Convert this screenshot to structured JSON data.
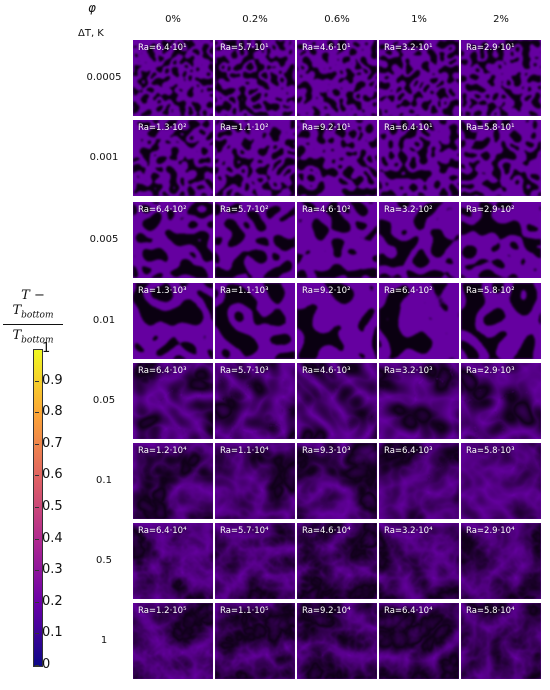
{
  "header": {
    "phi_label": "φ",
    "dT_label": "ΔT, K",
    "columns": [
      "0%",
      "0.2%",
      "0.6%",
      "1%",
      "2%"
    ]
  },
  "rows": [
    {
      "dT": "0.0005",
      "ra": [
        "Ra=6.4·10¹",
        "Ra=5.7·10¹",
        "Ra=4.6·10¹",
        "Ra=3.2·10¹",
        "Ra=2.9·10¹"
      ]
    },
    {
      "dT": "0.001",
      "ra": [
        "Ra=1.3·10²",
        "Ra=1.1·10²",
        "Ra=9.2·10¹",
        "Ra=6.4·10¹",
        "Ra=5.8·10¹"
      ]
    },
    {
      "dT": "0.005",
      "ra": [
        "Ra=6.4·10²",
        "Ra=5.7·10²",
        "Ra=4.6·10²",
        "Ra=3.2·10²",
        "Ra=2.9·10²"
      ]
    },
    {
      "dT": "0.01",
      "ra": [
        "Ra=1.3·10³",
        "Ra=1.1·10³",
        "Ra=9.2·10²",
        "Ra=6.4·10²",
        "Ra=5.8·10²"
      ]
    },
    {
      "dT": "0.05",
      "ra": [
        "Ra=6.4·10³",
        "Ra=5.7·10³",
        "Ra=4.6·10³",
        "Ra=3.2·10³",
        "Ra=2.9·10³"
      ]
    },
    {
      "dT": "0.1",
      "ra": [
        "Ra=1.2·10⁴",
        "Ra=1.1·10⁴",
        "Ra=9.3·10³",
        "Ra=6.4·10³",
        "Ra=5.8·10³"
      ]
    },
    {
      "dT": "0.5",
      "ra": [
        "Ra=6.4·10⁴",
        "Ra=5.7·10⁴",
        "Ra=4.6·10⁴",
        "Ra=3.2·10⁴",
        "Ra=2.9·10⁴"
      ]
    },
    {
      "dT": "1",
      "ra": [
        "Ra=1.2·10⁵",
        "Ra=1.1·10⁵",
        "Ra=9.2·10⁴",
        "Ra=6.4·10⁴",
        "Ra=5.8·10⁴"
      ]
    }
  ],
  "colorbar": {
    "numerator": "T − T",
    "numerator_sub": "bottom",
    "denominator": "T",
    "denominator_sub": "bottom",
    "ticks": [
      "1",
      "0.9",
      "0.8",
      "0.7",
      "0.6",
      "0.5",
      "0.4",
      "0.3",
      "0.2",
      "0.1",
      "0"
    ],
    "colors": [
      "#0d0887",
      "#6a00a8",
      "#b12a90",
      "#e16462",
      "#fca636",
      "#f0f921"
    ]
  }
}
